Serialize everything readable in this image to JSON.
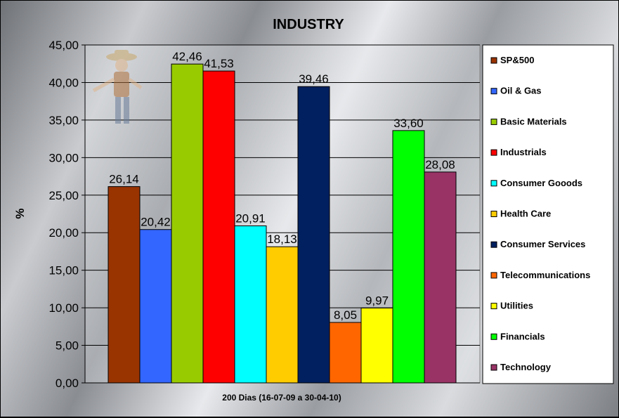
{
  "chart_data": {
    "type": "bar",
    "title": "INDUSTRY",
    "xlabel": "200 Dias (16-07-09 a 30-04-10)",
    "ylabel": "%",
    "ylim": [
      0,
      45
    ],
    "yticks": [
      "0,00",
      "5,00",
      "10,00",
      "15,00",
      "20,00",
      "25,00",
      "30,00",
      "35,00",
      "40,00",
      "45,00"
    ],
    "grid": true,
    "legend_position": "right",
    "series": [
      {
        "name": "SP&500",
        "value": 26.14,
        "label": "26,14",
        "color": "#993300"
      },
      {
        "name": "Oil & Gas",
        "value": 20.42,
        "label": "20,42",
        "color": "#3366FF"
      },
      {
        "name": "Basic Materials",
        "value": 42.46,
        "label": "42,46",
        "color": "#99CC00"
      },
      {
        "name": "Industrials",
        "value": 41.53,
        "label": "41,53",
        "color": "#FF0000"
      },
      {
        "name": "Consumer Gooods",
        "value": 20.91,
        "label": "20,91",
        "color": "#00FFFF"
      },
      {
        "name": "Health Care",
        "value": 18.13,
        "label": "18,13",
        "color": "#FFCC00"
      },
      {
        "name": "Consumer Services",
        "value": 39.46,
        "label": "39,46",
        "color": "#002060"
      },
      {
        "name": "Telecommunications",
        "value": 8.05,
        "label": "8,05",
        "color": "#FF6600"
      },
      {
        "name": "Utilities",
        "value": 9.97,
        "label": "9,97",
        "color": "#FFFF00"
      },
      {
        "name": "Financials",
        "value": 33.6,
        "label": "33,60",
        "color": "#00FF00"
      },
      {
        "name": "Technology",
        "value": 28.08,
        "label": "28,08",
        "color": "#993366"
      }
    ]
  },
  "decoration": {
    "icon": "cowboy-mascot-icon"
  }
}
